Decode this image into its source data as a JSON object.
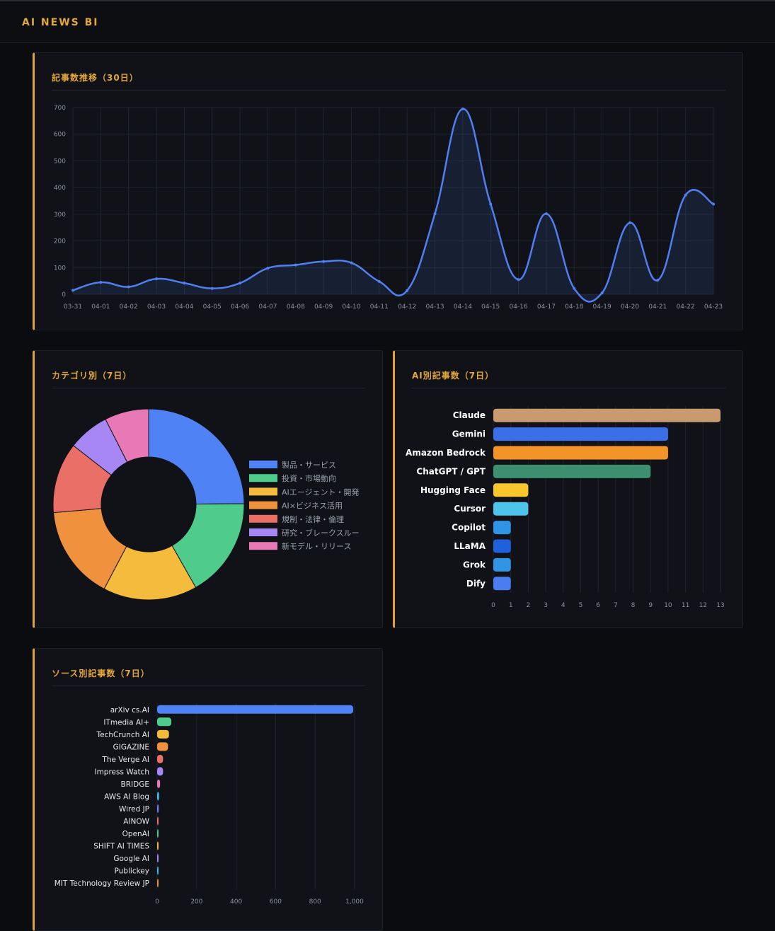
{
  "app": {
    "title": "AI NEWS BI"
  },
  "colors": {
    "accent": "#e0a13a",
    "line": "#4f7ff0",
    "grid": "#1f2430",
    "axis_text": "#8b909b"
  },
  "panels": {
    "trend": {
      "title": "記事数推移（30日）"
    },
    "category": {
      "title": "カテゴリ別（7日）"
    },
    "ai": {
      "title": "AI別記事数（7日）"
    },
    "source": {
      "title": "ソース別記事数（7日）"
    }
  },
  "chart_data": [
    {
      "id": "trend",
      "type": "area",
      "title": "記事数推移（30日）",
      "x": [
        "03-31",
        "04-01",
        "04-02",
        "04-03",
        "04-04",
        "04-05",
        "04-06",
        "04-07",
        "04-08",
        "04-09",
        "04-10",
        "04-11",
        "04-12",
        "04-13",
        "04-14",
        "04-15",
        "04-16",
        "04-17",
        "04-18",
        "04-19",
        "04-20",
        "04-21",
        "04-22",
        "04-23"
      ],
      "values": [
        15,
        45,
        28,
        58,
        42,
        22,
        42,
        98,
        110,
        123,
        118,
        48,
        14,
        302,
        695,
        338,
        55,
        302,
        22,
        5,
        268,
        53,
        372,
        338
      ],
      "yticks": [
        0,
        100,
        200,
        300,
        400,
        500,
        600,
        700
      ],
      "ylim": [
        0,
        700
      ],
      "grid": true,
      "color": "#4f7ff0"
    },
    {
      "id": "category",
      "type": "pie",
      "title": "カテゴリ別（7日）",
      "legend_position": "right",
      "labels": [
        "製品・サービス",
        "投資・市場動向",
        "AIエージェント・開発",
        "AI×ビジネス活用",
        "規制・法律・倫理",
        "研究・ブレークスルー",
        "新モデル・リリース"
      ],
      "values": [
        25,
        17,
        16,
        16,
        12,
        7,
        7.5
      ],
      "colors": [
        "#4f83f5",
        "#4fcb8c",
        "#f4bb3c",
        "#f0913e",
        "#ea6f66",
        "#a787f4",
        "#e879b6"
      ]
    },
    {
      "id": "ai",
      "type": "bar",
      "orientation": "horizontal",
      "title": "AI別記事数（7日）",
      "categories": [
        "Claude",
        "Gemini",
        "Amazon Bedrock",
        "ChatGPT / GPT",
        "Hugging Face",
        "Cursor",
        "Copilot",
        "LLaMA",
        "Grok",
        "Dify"
      ],
      "values": [
        13,
        10,
        10,
        9,
        2,
        2,
        1,
        1,
        1,
        1
      ],
      "colors": [
        "#c99a6d",
        "#3b6fe8",
        "#f29427",
        "#3c9070",
        "#f7c72d",
        "#4ec4ea",
        "#2f93e6",
        "#1f61dd",
        "#3195e6",
        "#4a7cf2"
      ],
      "xticks": [
        0,
        1,
        2,
        3,
        4,
        5,
        6,
        7,
        8,
        9,
        10,
        11,
        12,
        13
      ],
      "xlim": [
        0,
        13
      ],
      "grid": true
    },
    {
      "id": "source",
      "type": "bar",
      "orientation": "horizontal",
      "title": "ソース別記事数（7日）",
      "categories": [
        "arXiv cs.AI",
        "ITmedia AI+",
        "TechCrunch AI",
        "GIGAZINE",
        "The Verge AI",
        "Impress Watch",
        "BRIDGE",
        "AWS AI Blog",
        "Wired JP",
        "AINOW",
        "OpenAI",
        "SHIFT AI TIMES",
        "Google AI",
        "Publickey",
        "MIT Technology Review JP"
      ],
      "values": [
        993,
        72,
        60,
        55,
        30,
        30,
        15,
        10,
        8,
        7,
        6,
        5,
        4,
        3,
        2
      ],
      "colors": [
        "#4f83f5",
        "#4fcb8c",
        "#f4bb3c",
        "#f0913e",
        "#ea6f66",
        "#a787f4",
        "#e879b6",
        "#3fb7ea",
        "#6f7cf3",
        "#ea6f66",
        "#4fcb8c",
        "#f4bb3c",
        "#a787f4",
        "#3fb7ea",
        "#f0913e"
      ],
      "xticks": [
        0,
        200,
        400,
        600,
        800,
        1000
      ],
      "xtick_labels": [
        "0",
        "200",
        "400",
        "600",
        "800",
        "1,000"
      ],
      "xlim": [
        0,
        1000
      ],
      "grid": true
    }
  ]
}
